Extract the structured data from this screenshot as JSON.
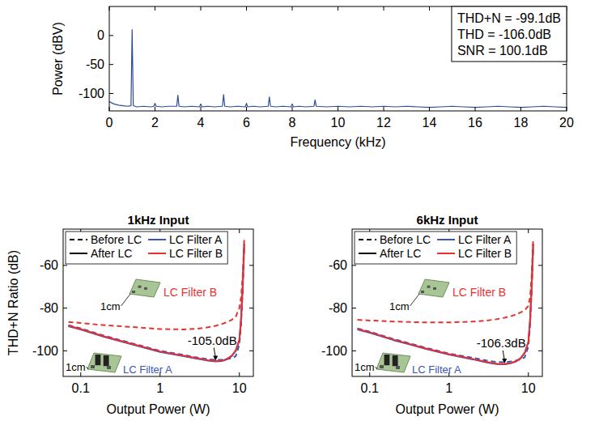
{
  "chart_data": [
    {
      "type": "line",
      "x_label": "Frequency (kHz)",
      "y_label": "Power (dBV)",
      "xlim": [
        0,
        20
      ],
      "xticks": [
        0,
        2,
        4,
        6,
        8,
        10,
        12,
        14,
        16,
        18,
        20
      ],
      "ylim": [
        -130,
        50
      ],
      "yticks": [
        -100,
        -50,
        0
      ],
      "stats": [
        "THD+N = -99.1dB",
        "THD = -106.0dB",
        "SNR = 100.1dB"
      ],
      "x": [
        0,
        0.2,
        0.4,
        0.6,
        0.8,
        0.95,
        1,
        1.05,
        1.2,
        1.5,
        1.8,
        1.95,
        2,
        2.05,
        2.3,
        2.6,
        2.95,
        3,
        3.05,
        3.3,
        3.6,
        3.95,
        4,
        4.05,
        4.3,
        4.6,
        4.95,
        5,
        5.05,
        5.3,
        5.6,
        5.95,
        6,
        6.05,
        6.3,
        6.6,
        6.95,
        7,
        7.05,
        7.3,
        7.6,
        7.95,
        8,
        8.05,
        8.3,
        8.6,
        8.95,
        9,
        9.05,
        9.5,
        10,
        10.5,
        11,
        11.5,
        12,
        12.5,
        13,
        13.5,
        14,
        14.5,
        15,
        15.5,
        16,
        16.5,
        17,
        17.5,
        18,
        18.5,
        19,
        19.5,
        20
      ],
      "series": [
        {
          "color": "#2b4c9b",
          "line_style": "solid",
          "values": [
            -114,
            -118,
            -120,
            -121,
            -122,
            -121,
            10,
            -121,
            -123,
            -122,
            -123,
            -122,
            -117,
            -122,
            -123,
            -122,
            -122,
            -103,
            -122,
            -123,
            -122,
            -123,
            -118,
            -123,
            -122,
            -123,
            -122,
            -102,
            -122,
            -123,
            -122,
            -123,
            -117,
            -123,
            -122,
            -123,
            -122,
            -106,
            -122,
            -123,
            -122,
            -123,
            -118,
            -123,
            -122,
            -123,
            -122,
            -111,
            -122,
            -123,
            -122,
            -123,
            -122,
            -123,
            -122,
            -123,
            -122,
            -123,
            -124,
            -123,
            -122,
            -123,
            -124,
            -123,
            -122,
            -123,
            -124,
            -123,
            -122,
            -123,
            -124
          ]
        }
      ]
    },
    {
      "type": "line",
      "title": "1kHz Input",
      "x_label": "Output Power (W)",
      "y_label": "THD+N Ratio (dB)",
      "log": "x",
      "legend": "top-left",
      "xlim": [
        0.06,
        15
      ],
      "xticks": [
        0.1,
        1,
        10
      ],
      "ylim": [
        -112,
        -43
      ],
      "yticks": [
        -100,
        -80,
        -60
      ],
      "x": [
        0.07,
        0.1,
        0.2,
        0.5,
        1,
        2,
        3,
        4,
        5,
        6,
        7,
        8,
        9,
        10,
        10.5,
        11,
        11.5
      ],
      "series": [
        {
          "name": "LC Filter A",
          "stage": "Before LC",
          "color": "#3a55b4",
          "line_style": "dashed",
          "values": [
            -88,
            -89.5,
            -93,
            -97,
            -100,
            -102,
            -103.2,
            -103.9,
            -104.3,
            -104.2,
            -103.8,
            -103.5,
            -102.5,
            -97,
            -88,
            -72,
            -52
          ]
        },
        {
          "name": "LC Filter A",
          "stage": "After LC",
          "color": "#3a55b4",
          "line_style": "solid",
          "values": [
            -88.5,
            -90,
            -93.5,
            -97.5,
            -100.5,
            -102.5,
            -103.8,
            -104.6,
            -105.0,
            -104.8,
            -104,
            -102.5,
            -100,
            -95,
            -85,
            -70,
            -50
          ]
        },
        {
          "name": "LC Filter B",
          "stage": "Before LC",
          "color": "#e8312f",
          "line_style": "dashed",
          "values": [
            -86.5,
            -87,
            -88,
            -89,
            -89.8,
            -90,
            -89.6,
            -89,
            -88.3,
            -87.5,
            -86.5,
            -85.5,
            -84,
            -80,
            -75,
            -65,
            -48
          ]
        },
        {
          "name": "LC Filter B",
          "stage": "After LC",
          "color": "#e8312f",
          "line_style": "solid",
          "values": [
            -88.3,
            -89.8,
            -93.3,
            -97.3,
            -100.3,
            -102.3,
            -103.6,
            -104.4,
            -104.8,
            -104.6,
            -103.8,
            -102.3,
            -99.8,
            -94.8,
            -85,
            -70,
            -50
          ]
        }
      ],
      "annotations": [
        {
          "text": "-105.0dB",
          "x": 5,
          "y": -105.0
        }
      ],
      "insets": [
        {
          "label": "LC Filter B",
          "scale_label": "1cm",
          "color": "#e8312f"
        },
        {
          "label": "LC Filter A",
          "scale_label": "1cm",
          "color": "#3a55b4"
        }
      ]
    },
    {
      "type": "line",
      "title": "6kHz Input",
      "x_label": "Output Power (W)",
      "log": "x",
      "legend": "top-left",
      "xlim": [
        0.06,
        15
      ],
      "xticks": [
        0.1,
        1,
        10
      ],
      "ylim": [
        -112,
        -43
      ],
      "yticks": [
        -100,
        -80,
        -60
      ],
      "x": [
        0.07,
        0.1,
        0.2,
        0.5,
        1,
        2,
        3,
        4,
        5,
        6,
        7,
        8,
        9,
        10,
        10.5,
        11,
        11.5
      ],
      "series": [
        {
          "name": "LC Filter A",
          "stage": "Before LC",
          "color": "#3a55b4",
          "line_style": "dashed",
          "values": [
            -89.5,
            -91,
            -94.5,
            -98.5,
            -101.3,
            -103.3,
            -104.6,
            -105.2,
            -105.4,
            -105,
            -104.5,
            -104,
            -103,
            -98,
            -88,
            -72,
            -52
          ]
        },
        {
          "name": "LC Filter A",
          "stage": "After LC",
          "color": "#3a55b4",
          "line_style": "solid",
          "values": [
            -90,
            -91.5,
            -95,
            -99,
            -101.8,
            -104,
            -105.5,
            -106.2,
            -106.3,
            -105.8,
            -105,
            -103.5,
            -101,
            -96,
            -86,
            -70,
            -50
          ]
        },
        {
          "name": "LC Filter B",
          "stage": "Before LC",
          "color": "#e8312f",
          "line_style": "dashed",
          "values": [
            -85.5,
            -85.8,
            -86.3,
            -86.7,
            -86.7,
            -86.3,
            -85.8,
            -85.2,
            -84.5,
            -83.8,
            -83,
            -82,
            -81,
            -79,
            -75,
            -65,
            -48
          ]
        },
        {
          "name": "LC Filter B",
          "stage": "After LC",
          "color": "#e8312f",
          "line_style": "solid",
          "values": [
            -89.8,
            -91.3,
            -94.8,
            -98.8,
            -101.6,
            -103.8,
            -105.3,
            -106,
            -106.2,
            -105.7,
            -104.9,
            -103.4,
            -100.9,
            -95.9,
            -86,
            -70,
            -50
          ]
        }
      ],
      "annotations": [
        {
          "text": "-106.3dB",
          "x": 5,
          "y": -106.3
        }
      ],
      "insets": [
        {
          "label": "LC Filter B",
          "scale_label": "1cm",
          "color": "#e8312f"
        },
        {
          "label": "LC Filter A",
          "scale_label": "1cm",
          "color": "#3a55b4"
        }
      ]
    }
  ]
}
